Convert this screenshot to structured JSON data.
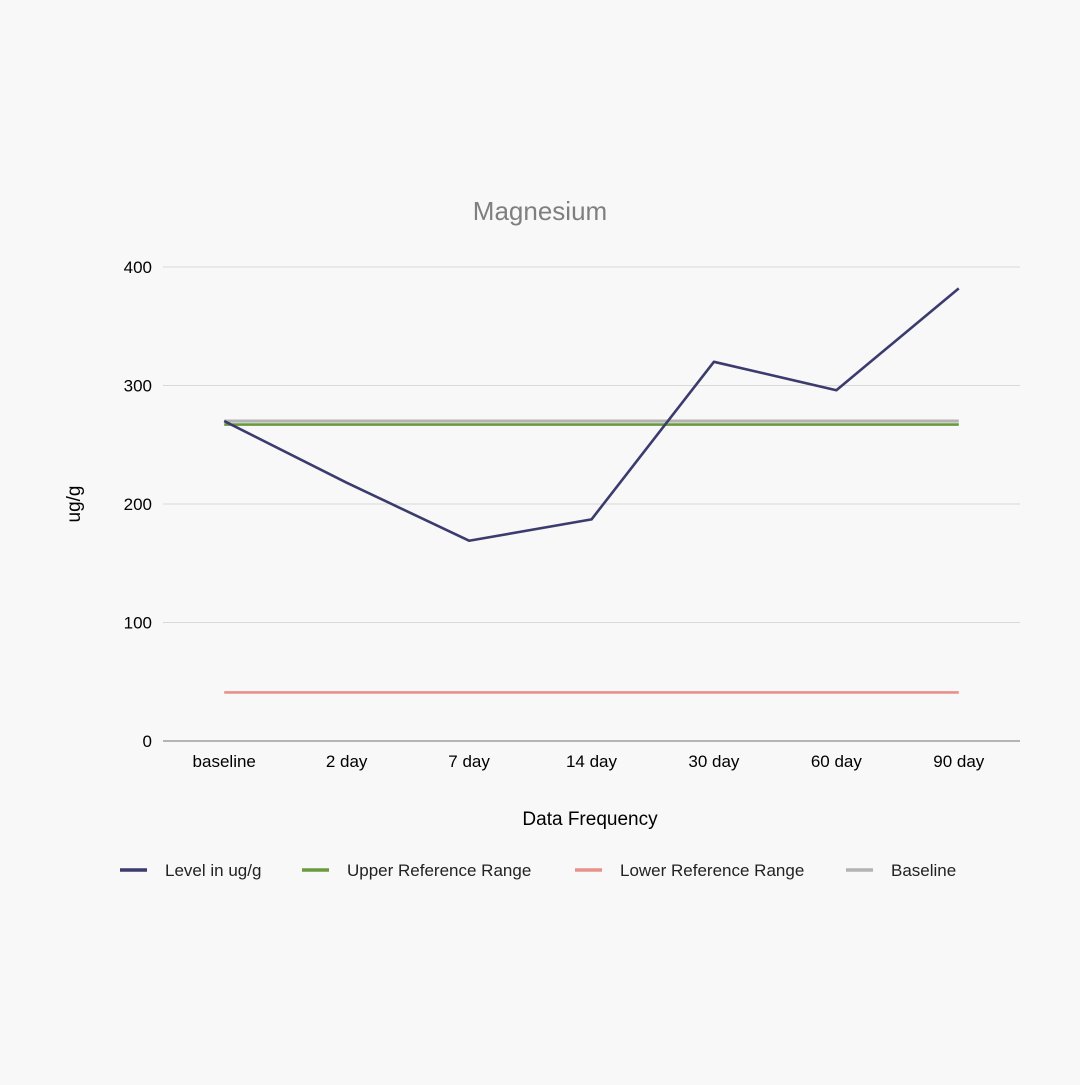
{
  "chart_data": {
    "type": "line",
    "title": "Magnesium",
    "xlabel": "Data Frequency",
    "ylabel": "ug/g",
    "categories": [
      "baseline",
      "2 day",
      "7 day",
      "14 day",
      "30 day",
      "60 day",
      "90 day"
    ],
    "ylim": [
      0,
      400
    ],
    "yticks": [
      0,
      100,
      200,
      300,
      400
    ],
    "grid": true,
    "legend_position": "bottom",
    "series": [
      {
        "name": "Level in ug/g",
        "color": "#3b3b6e",
        "values": [
          270,
          218,
          169,
          187,
          320,
          296,
          382
        ]
      },
      {
        "name": "Upper Reference Range",
        "color": "#6a9a3e",
        "values": [
          267,
          267,
          267,
          267,
          267,
          267,
          267
        ]
      },
      {
        "name": "Lower Reference Range",
        "color": "#e8918a",
        "values": [
          41,
          41,
          41,
          41,
          41,
          41,
          41
        ]
      },
      {
        "name": "Baseline",
        "color": "#b3b3b3",
        "values": [
          270,
          270,
          270,
          270,
          270,
          270,
          270
        ]
      }
    ]
  }
}
